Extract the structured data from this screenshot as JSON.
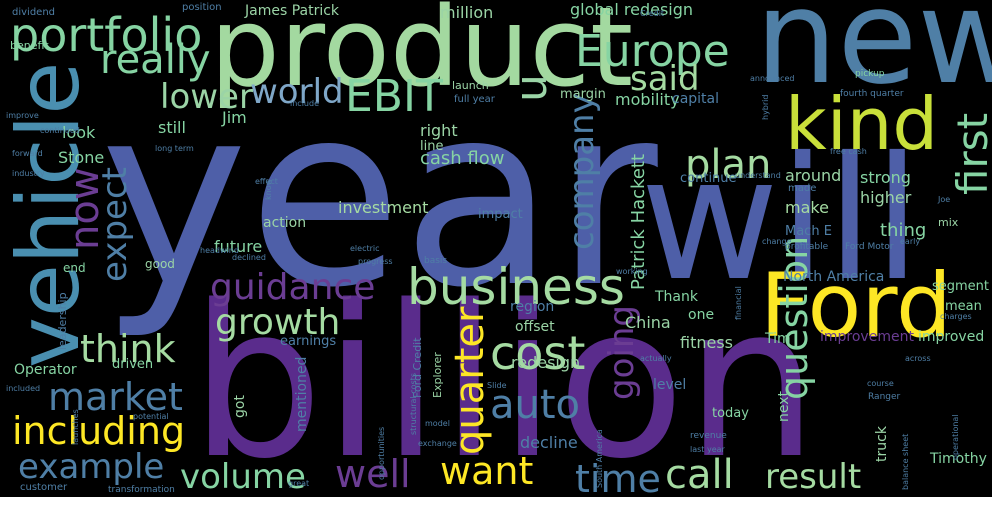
{
  "palette": {
    "background": "#000000",
    "purple": "#482878",
    "indigo": "#3e4a89",
    "blue": "#31688e",
    "teal": "#26828e",
    "green": "#35b779",
    "lightgreen": "#6ece58",
    "lime": "#b5de2b",
    "yellow": "#fde725"
  },
  "words": [
    {
      "text": "year",
      "color": "#4e5fa8",
      "orient": "h"
    },
    {
      "text": "billion",
      "color": "#5a2c8c",
      "orient": "h"
    },
    {
      "text": "product",
      "color": "#a3d9a0",
      "orient": "h"
    },
    {
      "text": "new",
      "color": "#4f7fa6",
      "orient": "h"
    },
    {
      "text": "will",
      "color": "#4e5fa8",
      "orient": "h"
    },
    {
      "text": "Ford",
      "color": "#fde725",
      "orient": "h"
    },
    {
      "text": "kind",
      "color": "#c9e03a",
      "orient": "h"
    },
    {
      "text": "vehicle",
      "color": "#4a8fb0",
      "orient": "v"
    },
    {
      "text": "portfolio",
      "color": "#86d4a3",
      "orient": "h"
    },
    {
      "text": "Europe",
      "color": "#86d4a3",
      "orient": "h"
    },
    {
      "text": "business",
      "color": "#a5dba2",
      "orient": "h"
    },
    {
      "text": "EBIT",
      "color": "#86d4a3",
      "orient": "h"
    },
    {
      "text": "world",
      "color": "#7fa7c8",
      "orient": "h"
    },
    {
      "text": "really",
      "color": "#86d4a3",
      "orient": "h"
    },
    {
      "text": "said",
      "color": "#a5dba2",
      "orient": "h"
    },
    {
      "text": "lower",
      "color": "#9bd4a6",
      "orient": "h"
    },
    {
      "text": "u",
      "color": "#9bd4a6",
      "orient": "v"
    },
    {
      "text": "now",
      "color": "#6b3d93",
      "orient": "v"
    },
    {
      "text": "expect",
      "color": "#4f7fa6",
      "orient": "v"
    },
    {
      "text": "company",
      "color": "#4f7fa6",
      "orient": "v"
    },
    {
      "text": "plan",
      "color": "#a5dba2",
      "orient": "h"
    },
    {
      "text": "first",
      "color": "#86d4a3",
      "orient": "v"
    },
    {
      "text": "guidance",
      "color": "#6b3d93",
      "orient": "h"
    },
    {
      "text": "growth",
      "color": "#a5dba2",
      "orient": "h"
    },
    {
      "text": "think",
      "color": "#a5dba2",
      "orient": "h"
    },
    {
      "text": "market",
      "color": "#4f7fa6",
      "orient": "h"
    },
    {
      "text": "including",
      "color": "#fde725",
      "orient": "h"
    },
    {
      "text": "example",
      "color": "#4f7fa6",
      "orient": "h"
    },
    {
      "text": "volume",
      "color": "#86d4a3",
      "orient": "h"
    },
    {
      "text": "well",
      "color": "#6b3d93",
      "orient": "h"
    },
    {
      "text": "want",
      "color": "#fde725",
      "orient": "h"
    },
    {
      "text": "time",
      "color": "#4f7fa6",
      "orient": "h"
    },
    {
      "text": "call",
      "color": "#a5dba2",
      "orient": "h"
    },
    {
      "text": "result",
      "color": "#a5dba2",
      "orient": "h"
    },
    {
      "text": "cost",
      "color": "#a5dba2",
      "orient": "h"
    },
    {
      "text": "quarter",
      "color": "#fde725",
      "orient": "v"
    },
    {
      "text": "auto",
      "color": "#4f7fa6",
      "orient": "h"
    },
    {
      "text": "going",
      "color": "#6b3d93",
      "orient": "v"
    },
    {
      "text": "question",
      "color": "#86d4a3",
      "orient": "v"
    },
    {
      "text": "cash flow",
      "color": "#86d4a3",
      "orient": "h"
    },
    {
      "text": "investment",
      "color": "#a5dba2",
      "orient": "h"
    },
    {
      "text": "Patrick Hackett",
      "color": "#86d4a3",
      "orient": "v"
    },
    {
      "text": "strong",
      "color": "#86d4a3",
      "orient": "h"
    },
    {
      "text": "higher",
      "color": "#9bd4a6",
      "orient": "h"
    },
    {
      "text": "thing",
      "color": "#86d4a3",
      "orient": "h"
    },
    {
      "text": "make",
      "color": "#a5dba2",
      "orient": "h"
    },
    {
      "text": "continue",
      "color": "#4f7fa6",
      "orient": "h"
    },
    {
      "text": "around",
      "color": "#9bd4a6",
      "orient": "h"
    },
    {
      "text": "Mach E",
      "color": "#4f7fa6",
      "orient": "h"
    },
    {
      "text": "North America",
      "color": "#4f7fa6",
      "orient": "h"
    },
    {
      "text": "improvement",
      "color": "#6b3d93",
      "orient": "h"
    },
    {
      "text": "improved",
      "color": "#86d4a3",
      "orient": "h"
    },
    {
      "text": "Tim",
      "color": "#86d4a3",
      "orient": "h"
    },
    {
      "text": "segment",
      "color": "#86d4a3",
      "orient": "h"
    },
    {
      "text": "mean",
      "color": "#86d4a3",
      "orient": "h"
    },
    {
      "text": "Timothy",
      "color": "#86d4a3",
      "orient": "h"
    },
    {
      "text": "fitness",
      "color": "#9bd4a6",
      "orient": "h"
    },
    {
      "text": "China",
      "color": "#9bd4a6",
      "orient": "h"
    },
    {
      "text": "Thank",
      "color": "#86d4a3",
      "orient": "h"
    },
    {
      "text": "one",
      "color": "#86d4a3",
      "orient": "h"
    },
    {
      "text": "level",
      "color": "#4f7fa6",
      "orient": "h"
    },
    {
      "text": "decline",
      "color": "#4f7fa6",
      "orient": "h"
    },
    {
      "text": "redesign",
      "color": "#9bd4a6",
      "orient": "h"
    },
    {
      "text": "offset",
      "color": "#9bd4a6",
      "orient": "h"
    },
    {
      "text": "region",
      "color": "#4f7fa6",
      "orient": "h"
    },
    {
      "text": "global redesign",
      "color": "#86d4a3",
      "orient": "h"
    },
    {
      "text": "mobility",
      "color": "#86d4a3",
      "orient": "h"
    },
    {
      "text": "capital",
      "color": "#4f7fa6",
      "orient": "h"
    },
    {
      "text": "margin",
      "color": "#9bd4a6",
      "orient": "h"
    },
    {
      "text": "million",
      "color": "#9bd4a6",
      "orient": "h"
    },
    {
      "text": "James Patrick",
      "color": "#9bd4a6",
      "orient": "h"
    },
    {
      "text": "Jim",
      "color": "#86d4a3",
      "orient": "h"
    },
    {
      "text": "look",
      "color": "#86d4a3",
      "orient": "h"
    },
    {
      "text": "still",
      "color": "#86d4a3",
      "orient": "h"
    },
    {
      "text": "Stone",
      "color": "#86d4a3",
      "orient": "h"
    },
    {
      "text": "right",
      "color": "#9bd4a6",
      "orient": "h"
    },
    {
      "text": "line",
      "color": "#9bd4a6",
      "orient": "h"
    },
    {
      "text": "future",
      "color": "#86d4a3",
      "orient": "h"
    },
    {
      "text": "action",
      "color": "#9bd4a6",
      "orient": "h"
    },
    {
      "text": "impact",
      "color": "#4f7fa6",
      "orient": "h"
    },
    {
      "text": "earnings",
      "color": "#4f7fa6",
      "orient": "h"
    },
    {
      "text": "driven",
      "color": "#86d4a3",
      "orient": "h"
    },
    {
      "text": "Operator",
      "color": "#86d4a3",
      "orient": "h"
    },
    {
      "text": "mentioned",
      "color": "#4f7fa6",
      "orient": "v"
    },
    {
      "text": "got",
      "color": "#9bd4a6",
      "orient": "v"
    },
    {
      "text": "today",
      "color": "#86d4a3",
      "orient": "h"
    },
    {
      "text": "next",
      "color": "#86d4a3",
      "orient": "v"
    },
    {
      "text": "truck",
      "color": "#9bd4a6",
      "orient": "v"
    },
    {
      "text": "good",
      "color": "#9bd4a6",
      "orient": "h"
    },
    {
      "text": "end",
      "color": "#86d4a3",
      "orient": "h"
    },
    {
      "text": "leadership",
      "color": "#4f7fa6",
      "orient": "v"
    },
    {
      "text": "dividend",
      "color": "#4f7fa6",
      "orient": "h"
    },
    {
      "text": "position",
      "color": "#4f7fa6",
      "orient": "h"
    },
    {
      "text": "benefit",
      "color": "#86d4a3",
      "orient": "h"
    },
    {
      "text": "launch",
      "color": "#9bd4a6",
      "orient": "h"
    },
    {
      "text": "full year",
      "color": "#4f7fa6",
      "orient": "h"
    },
    {
      "text": "Ford Credit",
      "color": "#4f7fa6",
      "orient": "v"
    },
    {
      "text": "Explorer",
      "color": "#9bd4a6",
      "orient": "v"
    },
    {
      "text": "customer",
      "color": "#4f7fa6",
      "orient": "h"
    },
    {
      "text": "transformation",
      "color": "#4f7fa6",
      "orient": "h"
    },
    {
      "text": "revenue",
      "color": "#4f7fa6",
      "orient": "h"
    },
    {
      "text": "last year",
      "color": "#4f7fa6",
      "orient": "h"
    },
    {
      "text": "profitable",
      "color": "#4f7fa6",
      "orient": "h"
    },
    {
      "text": "Ford Motor",
      "color": "#4f7fa6",
      "orient": "h"
    },
    {
      "text": "change",
      "color": "#4f7fa6",
      "orient": "h"
    },
    {
      "text": "made",
      "color": "#4f7fa6",
      "orient": "h"
    },
    {
      "text": "financial",
      "color": "#4f7fa6",
      "orient": "v"
    },
    {
      "text": "fourth quarter",
      "color": "#4f7fa6",
      "orient": "h"
    },
    {
      "text": "pickup",
      "color": "#86d4a3",
      "orient": "h"
    },
    {
      "text": "free cash",
      "color": "#4f7fa6",
      "orient": "h"
    },
    {
      "text": "long term",
      "color": "#4f7fa6",
      "orient": "h"
    },
    {
      "text": "mix",
      "color": "#9bd4a6",
      "orient": "h"
    },
    {
      "text": "Ranger",
      "color": "#4f7fa6",
      "orient": "h"
    },
    {
      "text": "charges",
      "color": "#4f7fa6",
      "orient": "h"
    },
    {
      "text": "course",
      "color": "#4f7fa6",
      "orient": "h"
    },
    {
      "text": "basis",
      "color": "#4f7fa6",
      "orient": "h"
    },
    {
      "text": "working",
      "color": "#4f7fa6",
      "orient": "h"
    },
    {
      "text": "launches",
      "color": "#4f7fa6",
      "orient": "v"
    },
    {
      "text": "included",
      "color": "#4f7fa6",
      "orient": "h"
    },
    {
      "text": "industry",
      "color": "#4f7fa6",
      "orient": "h"
    },
    {
      "text": "forward",
      "color": "#4f7fa6",
      "orient": "h"
    },
    {
      "text": "improve",
      "color": "#4f7fa6",
      "orient": "h"
    },
    {
      "text": "continued",
      "color": "#4f7fa6",
      "orient": "h"
    },
    {
      "text": "potential",
      "color": "#4f7fa6",
      "orient": "h"
    },
    {
      "text": "actually",
      "color": "#4f7fa6",
      "orient": "h"
    },
    {
      "text": "great",
      "color": "#4f7fa6",
      "orient": "h"
    },
    {
      "text": "Slide",
      "color": "#4f7fa6",
      "orient": "h"
    },
    {
      "text": "structural costs",
      "color": "#4f7fa6",
      "orient": "v"
    },
    {
      "text": "model",
      "color": "#4f7fa6",
      "orient": "h"
    },
    {
      "text": "exchange",
      "color": "#4f7fa6",
      "orient": "h"
    },
    {
      "text": "progress",
      "color": "#4f7fa6",
      "orient": "h"
    },
    {
      "text": "across",
      "color": "#4f7fa6",
      "orient": "h"
    },
    {
      "text": "early",
      "color": "#4f7fa6",
      "orient": "h"
    },
    {
      "text": "understand",
      "color": "#4f7fa6",
      "orient": "h"
    },
    {
      "text": "declined",
      "color": "#4f7fa6",
      "orient": "h"
    },
    {
      "text": "headwind",
      "color": "#4f7fa6",
      "orient": "h"
    },
    {
      "text": "effect",
      "color": "#4f7fa6",
      "orient": "h"
    },
    {
      "text": "know",
      "color": "#4f7fa6",
      "orient": "v"
    },
    {
      "text": "hybrid",
      "color": "#4f7fa6",
      "orient": "v"
    },
    {
      "text": "Credit",
      "color": "#4f7fa6",
      "orient": "h"
    },
    {
      "text": "announced",
      "color": "#4f7fa6",
      "orient": "h"
    },
    {
      "text": "include",
      "color": "#4f7fa6",
      "orient": "h"
    },
    {
      "text": "electric",
      "color": "#4f7fa6",
      "orient": "h"
    },
    {
      "text": "South America",
      "color": "#4f7fa6",
      "orient": "v"
    },
    {
      "text": "opportunities",
      "color": "#4f7fa6",
      "orient": "v"
    },
    {
      "text": "operational",
      "color": "#4f7fa6",
      "orient": "v"
    },
    {
      "text": "balance sheet",
      "color": "#4f7fa6",
      "orient": "v"
    },
    {
      "text": "Joe",
      "color": "#4f7fa6",
      "orient": "h"
    }
  ]
}
